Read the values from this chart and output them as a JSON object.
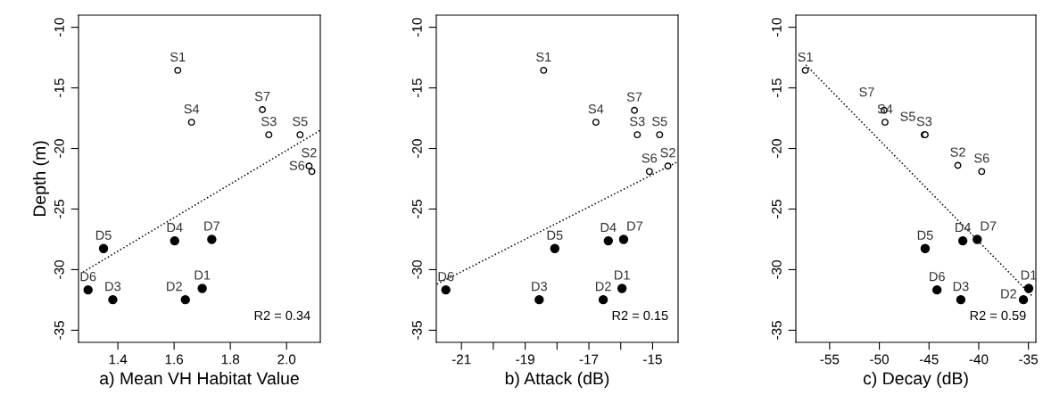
{
  "chart_data": [
    {
      "type": "scatter",
      "xlabel": "a) Mean VH Habitat Value",
      "ylabel": "Depth (m)",
      "xlim": [
        1.26,
        2.12
      ],
      "xticks": [
        1.4,
        1.6,
        1.8,
        {
          "value": 2.0,
          "label": "2.0"
        }
      ],
      "ylim": [
        -36,
        -9
      ],
      "yticks": [
        -10,
        -15,
        -20,
        -25,
        -30,
        -35
      ],
      "grid": false,
      "legend": false,
      "marker": "circle",
      "series": [
        {
          "color": "#000000",
          "x": [
            1.613,
            2.08,
            1.937,
            1.662,
            2.048,
            2.09,
            1.914
          ],
          "values": [
            -13.55,
            -21.45,
            -18.87,
            -17.84,
            -18.87,
            -21.9,
            -16.8
          ]
        },
        {
          "color": "#000000",
          "x": [
            1.7,
            1.64,
            1.382,
            1.602,
            1.349,
            1.294,
            1.734
          ],
          "values": [
            -31.55,
            -32.48,
            -32.48,
            -27.62,
            -28.26,
            -31.67,
            -27.5
          ]
        },
        {
          "type": "line",
          "color": "#000000",
          "line_style": "dotted",
          "marker": "none",
          "x": [
            1.276,
            2.12
          ],
          "values": [
            -30.2,
            -18.5
          ]
        }
      ],
      "annotations": [
        {
          "text": "S1",
          "x": 1.613,
          "y": -13.55
        },
        {
          "text": "S2",
          "x": 2.08,
          "y": -21.45
        },
        {
          "text": "S3",
          "x": 1.937,
          "y": -18.87
        },
        {
          "text": "S4",
          "x": 1.662,
          "y": -17.84
        },
        {
          "text": "S5",
          "x": 2.048,
          "y": -18.87
        },
        {
          "text": "S6",
          "x": 2.09,
          "y": -21.9
        },
        {
          "text": "S7",
          "x": 1.914,
          "y": -16.8
        },
        {
          "text": "D1",
          "x": 1.7,
          "y": -31.55
        },
        {
          "text": "D2",
          "x": 1.64,
          "y": -32.48
        },
        {
          "text": "D3",
          "x": 1.382,
          "y": -32.48
        },
        {
          "text": "D4",
          "x": 1.602,
          "y": -27.62
        },
        {
          "text": "D5",
          "x": 1.349,
          "y": -28.26
        },
        {
          "text": "D6",
          "x": 1.294,
          "y": -31.67
        },
        {
          "text": "D7",
          "x": 1.734,
          "y": -27.5
        },
        "R2 = 0.34"
      ]
    },
    {
      "type": "scatter",
      "xlabel": "b) Attack (dB)",
      "xlim": [
        -21.79,
        -14.2
      ],
      "xticks": [
        -21,
        {
          "value": -20,
          "label": null
        },
        -19,
        {
          "value": -18,
          "label": null
        },
        -17,
        {
          "value": -16,
          "label": null
        },
        -15
      ],
      "ylim": [
        -36,
        -9
      ],
      "yticks": [
        -10,
        -15,
        -20,
        -25,
        -30,
        -35
      ],
      "grid": false,
      "legend": false,
      "marker": "circle",
      "series": [
        {
          "color": "#000000",
          "x": [
            -18.42,
            -14.52,
            -15.48,
            -16.78,
            -14.78,
            -15.1,
            -15.57
          ],
          "values": [
            -13.55,
            -21.45,
            -18.87,
            -17.84,
            -18.87,
            -21.9,
            -16.85
          ]
        },
        {
          "color": "#000000",
          "x": [
            -15.96,
            -16.55,
            -18.56,
            -16.39,
            -18.07,
            -21.49,
            -15.91
          ],
          "values": [
            -31.55,
            -32.48,
            -32.48,
            -27.62,
            -28.26,
            -31.67,
            -27.5
          ]
        },
        {
          "type": "line",
          "color": "#000000",
          "line_style": "dotted",
          "marker": "none",
          "x": [
            -21.77,
            -14.2
          ],
          "values": [
            -31.2,
            -21.08
          ]
        }
      ],
      "annotations": [
        {
          "text": "S1",
          "x": -18.42,
          "y": -13.55
        },
        {
          "text": "S2",
          "x": -14.52,
          "y": -21.45
        },
        {
          "text": "S3",
          "x": -15.48,
          "y": -18.87
        },
        {
          "text": "S4",
          "x": -16.78,
          "y": -17.84
        },
        {
          "text": "S5",
          "x": -14.78,
          "y": -18.87
        },
        {
          "text": "S6",
          "x": -15.1,
          "y": -21.9
        },
        {
          "text": "S7",
          "x": -15.57,
          "y": -16.85
        },
        {
          "text": "D1",
          "x": -15.96,
          "y": -31.55
        },
        {
          "text": "D2",
          "x": -16.55,
          "y": -32.48
        },
        {
          "text": "D3",
          "x": -18.56,
          "y": -32.48
        },
        {
          "text": "D4",
          "x": -16.39,
          "y": -27.62
        },
        {
          "text": "D5",
          "x": -18.07,
          "y": -28.26
        },
        {
          "text": "D6",
          "x": -21.49,
          "y": -31.67
        },
        {
          "text": "D7",
          "x": -15.91,
          "y": -27.5
        },
        "R2 = 0.15"
      ]
    },
    {
      "type": "scatter",
      "xlabel": "c) Decay (dB)",
      "xlim": [
        -58.4,
        -34.25
      ],
      "xticks": [
        -55,
        -50,
        -45,
        -40,
        -35
      ],
      "ylim": [
        -36,
        -9
      ],
      "yticks": [
        -10,
        -15,
        -20,
        -25,
        -30,
        -35
      ],
      "grid": false,
      "legend": false,
      "marker": "circle",
      "series": [
        {
          "color": "#000000",
          "x": [
            -57.45,
            -42.1,
            -45.48,
            -49.43,
            -45.39,
            -39.7,
            -49.52
          ],
          "values": [
            -13.55,
            -21.4,
            -18.87,
            -17.84,
            -18.87,
            -21.9,
            -16.85
          ]
        },
        {
          "color": "#000000",
          "x": [
            -34.97,
            -35.5,
            -41.8,
            -41.6,
            -45.39,
            -44.2,
            -40.15
          ],
          "values": [
            -31.55,
            -32.48,
            -32.48,
            -27.62,
            -28.26,
            -31.67,
            -27.5
          ]
        },
        {
          "type": "line",
          "color": "#000000",
          "line_style": "dotted",
          "marker": "none",
          "x": [
            -57.4,
            -34.6
          ],
          "values": [
            -13.1,
            -32.2
          ]
        }
      ],
      "annotations": [
        {
          "text": "S1",
          "x": -57.45,
          "y": -13.55
        },
        {
          "text": "S2",
          "x": -42.1,
          "y": -21.4
        },
        {
          "text": "S3",
          "x": -45.48,
          "y": -18.87
        },
        {
          "text": "S4",
          "x": -49.43,
          "y": -17.84
        },
        {
          "text": "S5",
          "x": -45.39,
          "y": -18.87
        },
        {
          "text": "S6",
          "x": -39.7,
          "y": -21.9
        },
        {
          "text": "S7",
          "x": -49.52,
          "y": -16.85
        },
        {
          "text": "D1",
          "x": -34.97,
          "y": -31.55
        },
        {
          "text": "D2",
          "x": -35.5,
          "y": -32.48
        },
        {
          "text": "D3",
          "x": -41.8,
          "y": -32.48
        },
        {
          "text": "D4",
          "x": -41.6,
          "y": -27.62
        },
        {
          "text": "D5",
          "x": -45.39,
          "y": -28.26
        },
        {
          "text": "D6",
          "x": -44.2,
          "y": -31.67
        },
        {
          "text": "D7",
          "x": -40.15,
          "y": -27.5
        },
        "R2 = 0.59"
      ]
    }
  ]
}
